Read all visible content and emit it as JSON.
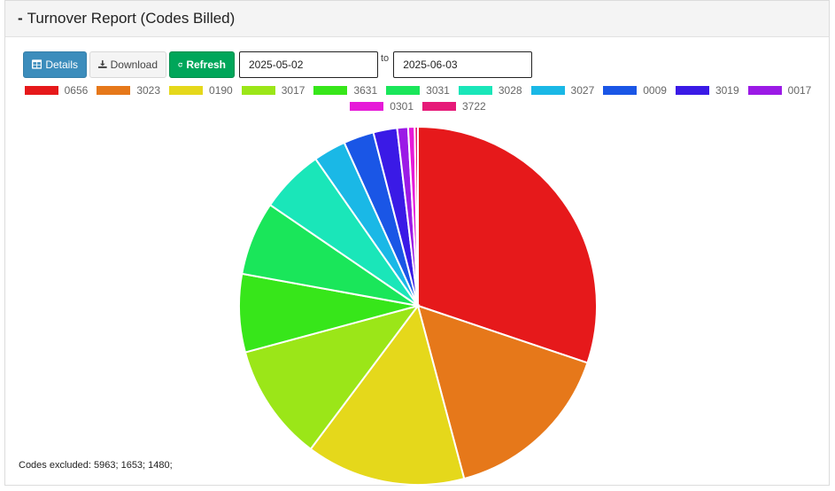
{
  "panel": {
    "collapse_label": "-",
    "title": "Turnover Report (Codes Billed)"
  },
  "toolbar": {
    "details_label": "Details",
    "details_icon": "table-icon",
    "download_label": "Download",
    "download_icon": "download-icon",
    "refresh_label": "Refresh",
    "refresh_icon": "refresh-icon",
    "date_from": "2025-05-02",
    "date_sep": "to",
    "date_to": "2025-06-03"
  },
  "colors": {
    "details": "#3c8dbc",
    "refresh": "#00a65a"
  },
  "chart_data": {
    "type": "pie",
    "categories": [
      "0656",
      "3023",
      "0190",
      "3017",
      "3631",
      "3031",
      "3028",
      "3027",
      "0009",
      "3019",
      "0017",
      "0301",
      "3722"
    ],
    "values": [
      30.8,
      16.0,
      14.7,
      10.8,
      7.2,
      6.8,
      5.9,
      3.0,
      2.8,
      2.2,
      1.0,
      0.6,
      0.3
    ],
    "colors": [
      "#e6191b",
      "#e6781a",
      "#e5d81b",
      "#9be618",
      "#37e61a",
      "#1ae65a",
      "#1ae6b9",
      "#1ab8e6",
      "#1a56e6",
      "#3a1ae6",
      "#9b1ae6",
      "#e61ad8",
      "#e61a78"
    ],
    "legend_position": "top"
  },
  "footer": {
    "excluded_text": "Codes excluded: 5963; 1653; 1480;"
  }
}
